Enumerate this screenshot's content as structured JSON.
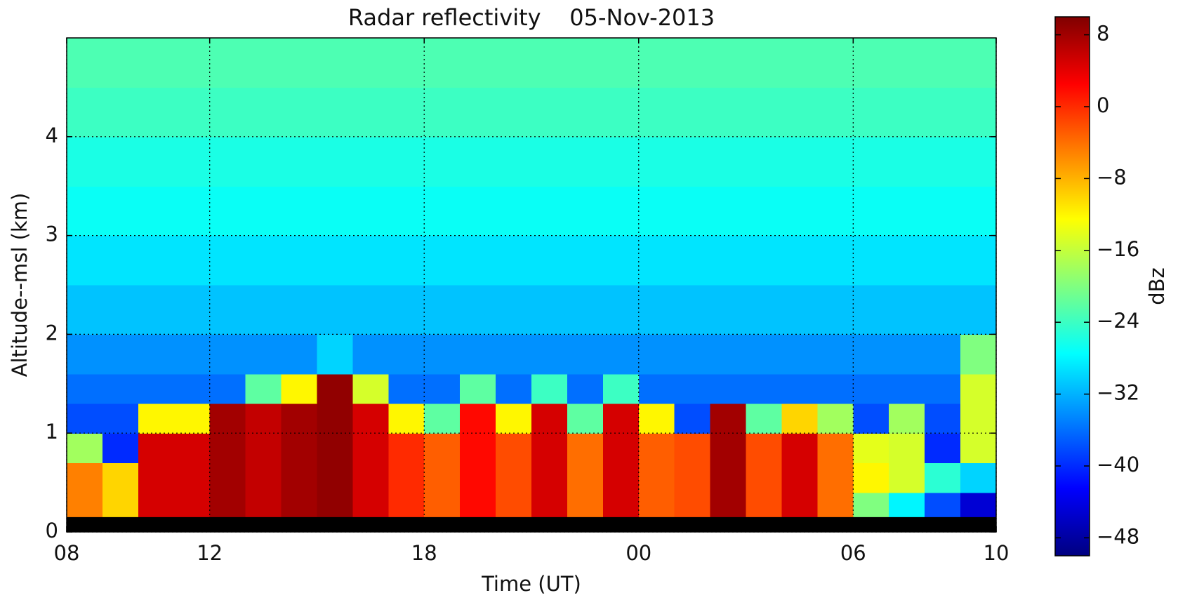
{
  "chart_data": {
    "type": "heatmap",
    "title": "Radar reflectivity    05-Nov-2013",
    "x_label": "Time (UT)",
    "y_label": "Altitude--msl (km)",
    "colorbar_label": "dBz",
    "colormap": "jet",
    "no_data_color": "#000000",
    "grid": true,
    "xlim": [
      8,
      34
    ],
    "ylim": [
      0,
      5
    ],
    "clim": [
      -50,
      10
    ],
    "xticks": [
      {
        "value": 8,
        "label": "08"
      },
      12,
      18,
      {
        "value": 24,
        "label": "00"
      },
      {
        "value": 30,
        "label": "06"
      },
      {
        "value": 34,
        "label": "10"
      }
    ],
    "yticks": [
      0,
      1,
      2,
      3,
      4
    ],
    "cticks": [
      8,
      0,
      {
        "value": -8,
        "label": "−8"
      },
      {
        "value": -16,
        "label": "−16"
      },
      {
        "value": -24,
        "label": "−24"
      },
      {
        "value": -32,
        "label": "−32"
      },
      {
        "value": -40,
        "label": "−40"
      },
      {
        "value": -48,
        "label": "−48"
      }
    ],
    "x_bins": [
      8,
      9,
      10,
      11,
      12,
      13,
      14,
      15,
      16,
      17,
      18,
      19,
      20,
      21,
      22,
      23,
      24,
      25,
      26,
      27,
      28,
      29,
      30,
      31,
      32,
      33,
      34
    ],
    "y_bins": [
      0.15,
      0.4,
      0.7,
      1.0,
      1.3,
      1.6,
      2.0,
      2.5,
      3.0,
      3.5,
      4.0,
      4.5,
      5.0
    ],
    "z": [
      [
        -5,
        -10,
        5,
        5,
        8,
        6,
        8,
        9,
        5,
        0,
        -3,
        2,
        -2,
        5,
        -4,
        5,
        -3,
        -2,
        8,
        -2,
        5,
        -4,
        -20,
        -28,
        -38,
        -45
      ],
      [
        -5,
        -10,
        5,
        5,
        8,
        6,
        8,
        9,
        5,
        0,
        -3,
        2,
        -2,
        5,
        -4,
        5,
        -3,
        -2,
        8,
        -2,
        5,
        -4,
        -12,
        -15,
        -25,
        -30
      ],
      [
        -18,
        -40,
        5,
        5,
        8,
        6,
        8,
        9,
        5,
        0,
        -3,
        2,
        -2,
        5,
        -4,
        5,
        -3,
        -2,
        8,
        -2,
        5,
        -4,
        -14,
        -15,
        -40,
        -15
      ],
      [
        -38,
        -38,
        -12,
        -12,
        8,
        6,
        8,
        9,
        5,
        -12,
        -22,
        2,
        -12,
        5,
        -22,
        5,
        -12,
        -38,
        8,
        -22,
        -10,
        -18,
        -38,
        -18,
        -38,
        -15
      ],
      [
        -36,
        -36,
        -36,
        -36,
        -36,
        -22,
        -12,
        9,
        -15,
        -36,
        -36,
        -22,
        -36,
        -24,
        -36,
        -24,
        -36,
        -36,
        -36,
        -36,
        -36,
        -36,
        -36,
        -36,
        -36,
        -15
      ],
      [
        -34,
        -34,
        -34,
        -34,
        -34,
        -34,
        -34,
        -30,
        -34,
        -34,
        -34,
        -34,
        -34,
        -34,
        -34,
        -34,
        -34,
        -34,
        -34,
        -34,
        -34,
        -34,
        -34,
        -34,
        -34,
        -20
      ],
      [
        -31,
        -31,
        -31,
        -31,
        -31,
        -31,
        -31,
        -31,
        -31,
        -31,
        -31,
        -31,
        -31,
        -31,
        -31,
        -31,
        -31,
        -31,
        -31,
        -31,
        -31,
        -31,
        -31,
        -31,
        -31,
        -31
      ],
      [
        -29,
        -29,
        -29,
        -29,
        -29,
        -29,
        -29,
        -29,
        -29,
        -29,
        -29,
        -29,
        -29,
        -29,
        -29,
        -29,
        -29,
        -29,
        -29,
        -29,
        -29,
        -29,
        -29,
        -29,
        -29,
        -29
      ],
      [
        -27,
        -27,
        -27,
        -27,
        -27,
        -27,
        -27,
        -27,
        -27,
        -27,
        -27,
        -27,
        -27,
        -27,
        -27,
        -27,
        -27,
        -27,
        -27,
        -27,
        -27,
        -27,
        -27,
        -27,
        -27,
        -27
      ],
      [
        -26,
        -26,
        -26,
        -26,
        -26,
        -26,
        -26,
        -26,
        -26,
        -26,
        -26,
        -26,
        -26,
        -26,
        -26,
        -26,
        -26,
        -26,
        -26,
        -26,
        -26,
        -26,
        -26,
        -26,
        -26,
        -26
      ],
      [
        -24,
        -24,
        -24,
        -24,
        -24,
        -24,
        -24,
        -24,
        -24,
        -24,
        -24,
        -24,
        -24,
        -24,
        -24,
        -24,
        -24,
        -24,
        -24,
        -24,
        -24,
        -24,
        -24,
        -24,
        -24,
        -24
      ],
      [
        -23,
        -23,
        -23,
        -23,
        -23,
        -23,
        -23,
        -23,
        -23,
        -23,
        -23,
        -23,
        -23,
        -23,
        -23,
        -23,
        -23,
        -23,
        -23,
        -23,
        -23,
        -23,
        -23,
        -23,
        -23,
        -23
      ]
    ]
  }
}
